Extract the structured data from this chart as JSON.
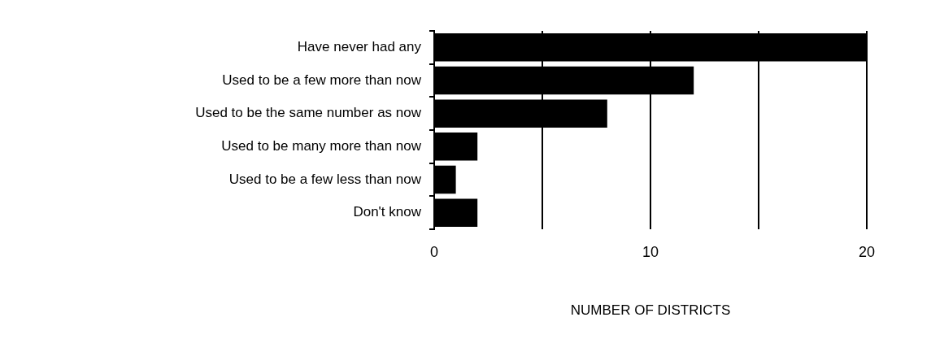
{
  "chart_data": {
    "type": "bar",
    "orientation": "horizontal",
    "categories": [
      "Have never had any",
      "Used to be a few more than now",
      "Used to be the same number as now",
      "Used to be many more than now",
      "Used to be a few less than now",
      "Don't know"
    ],
    "values": [
      20,
      12,
      8,
      2,
      1,
      2
    ],
    "color": "#000000",
    "xlabel": "NUMBER OF DISTRICTS",
    "xlim": [
      0,
      20
    ],
    "xticks": [
      0,
      {
        "value": 5,
        "label": null
      },
      10,
      {
        "value": 15,
        "label": null
      },
      20
    ],
    "grid": "x"
  }
}
